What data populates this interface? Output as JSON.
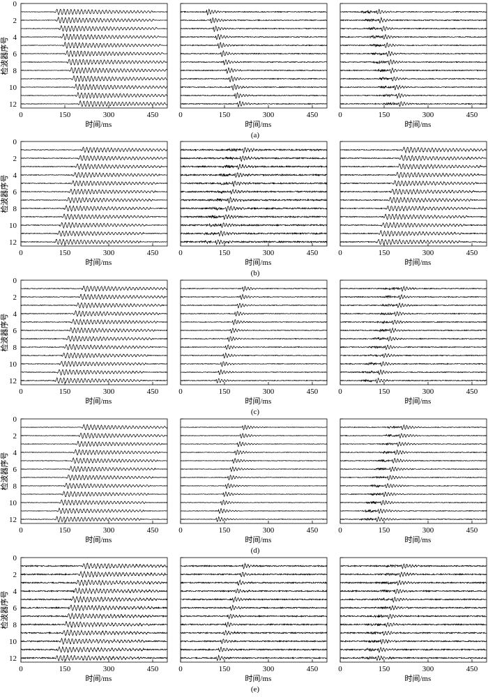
{
  "chart_data": {
    "type": "line",
    "description_kind": "seismogram-wiggle-traces",
    "xlabel": "时间/ms",
    "ylabel": "检波器序号",
    "xlim": [
      0,
      500
    ],
    "ylim": [
      0,
      12.5
    ],
    "xticks": [
      0,
      150,
      300,
      450
    ],
    "yticks": [
      0,
      2,
      4,
      6,
      8,
      10,
      12
    ],
    "traces": [
      1,
      2,
      3,
      4,
      5,
      6,
      7,
      8,
      9,
      10,
      11,
      12
    ],
    "colors": {
      "trace": "#000000",
      "axis": "#000000"
    },
    "rows": [
      {
        "label": "(a)",
        "panels": [
          {
            "name": "panel-a1",
            "arrival_ms": [
              120,
              125,
              135,
              142,
              148,
              155,
              162,
              170,
              178,
              185,
              192,
              200
            ],
            "duration_ms": 330,
            "amp": 0.35,
            "noise": 0.03,
            "style": "ringing"
          },
          {
            "name": "panel-a2",
            "arrival_ms": [
              95,
              108,
              118,
              126,
              134,
              144,
              152,
              162,
              172,
              182,
              192,
              200
            ],
            "duration_ms": 60,
            "amp": 0.35,
            "noise": 0.05,
            "style": "pulse"
          },
          {
            "name": "panel-a3",
            "arrival_ms": [
              130,
              138,
              146,
              152,
              158,
              164,
              170,
              176,
              182,
              190,
              198,
              206
            ],
            "duration_ms": 45,
            "amp": 0.3,
            "noise": 0.05,
            "style": "pulse-burst"
          }
        ]
      },
      {
        "label": "(b)",
        "panels": [
          {
            "name": "panel-b1",
            "arrival_ms": [
              210,
              200,
              190,
              182,
              175,
              168,
              160,
              152,
              145,
              137,
              128,
              118
            ],
            "duration_ms": 290,
            "amp": 0.32,
            "noise": 0.04,
            "style": "ringing"
          },
          {
            "name": "panel-b2",
            "arrival_ms": [
              218,
              210,
              200,
              192,
              184,
              176,
              168,
              160,
              152,
              144,
              136,
              126
            ],
            "duration_ms": 60,
            "amp": 0.3,
            "noise": 0.08,
            "style": "pulse-burst"
          },
          {
            "name": "panel-b3",
            "arrival_ms": [
              215,
              207,
              200,
              192,
              184,
              176,
              168,
              160,
              152,
              144,
              136,
              128
            ],
            "duration_ms": 280,
            "amp": 0.32,
            "noise": 0.05,
            "style": "ringing"
          }
        ]
      },
      {
        "label": "(c)",
        "panels": [
          {
            "name": "panel-c1",
            "arrival_ms": [
              212,
              202,
              192,
              184,
              176,
              168,
              160,
              152,
              144,
              136,
              128,
              120
            ],
            "duration_ms": 290,
            "amp": 0.32,
            "noise": 0.04,
            "style": "ringing"
          },
          {
            "name": "panel-c2",
            "arrival_ms": [
              218,
              210,
              200,
              192,
              184,
              176,
              168,
              160,
              152,
              144,
              136,
              128
            ],
            "duration_ms": 60,
            "amp": 0.3,
            "noise": 0.04,
            "style": "pulse"
          },
          {
            "name": "panel-c3",
            "arrival_ms": [
              215,
              207,
              200,
              192,
              184,
              176,
              168,
              160,
              152,
              144,
              136,
              128
            ],
            "duration_ms": 50,
            "amp": 0.28,
            "noise": 0.05,
            "style": "pulse-burst"
          }
        ]
      },
      {
        "label": "(d)",
        "panels": [
          {
            "name": "panel-d1",
            "arrival_ms": [
              212,
              202,
              192,
              184,
              176,
              168,
              160,
              152,
              144,
              136,
              128,
              120
            ],
            "duration_ms": 290,
            "amp": 0.32,
            "noise": 0.03,
            "style": "ringing"
          },
          {
            "name": "panel-d2",
            "arrival_ms": [
              218,
              210,
              200,
              192,
              184,
              176,
              168,
              160,
              152,
              144,
              136,
              128
            ],
            "duration_ms": 70,
            "amp": 0.3,
            "noise": 0.03,
            "style": "pulse"
          },
          {
            "name": "panel-d3",
            "arrival_ms": [
              215,
              207,
              200,
              192,
              184,
              176,
              168,
              160,
              152,
              144,
              136,
              128
            ],
            "duration_ms": 70,
            "amp": 0.28,
            "noise": 0.04,
            "style": "pulse-burst"
          }
        ]
      },
      {
        "label": "(e)",
        "panels": [
          {
            "name": "panel-e1",
            "arrival_ms": [
              212,
              202,
              192,
              184,
              176,
              168,
              160,
              152,
              144,
              136,
              128,
              120
            ],
            "duration_ms": 290,
            "amp": 0.32,
            "noise": 0.07,
            "style": "ringing"
          },
          {
            "name": "panel-e2",
            "arrival_ms": [
              218,
              210,
              200,
              192,
              184,
              176,
              168,
              160,
              152,
              144,
              136,
              128
            ],
            "duration_ms": 60,
            "amp": 0.28,
            "noise": 0.07,
            "style": "pulse"
          },
          {
            "name": "panel-e3",
            "arrival_ms": [
              215,
              207,
              200,
              192,
              184,
              176,
              168,
              160,
              152,
              144,
              136,
              128
            ],
            "duration_ms": 60,
            "amp": 0.28,
            "noise": 0.07,
            "style": "pulse-burst"
          }
        ]
      }
    ]
  }
}
